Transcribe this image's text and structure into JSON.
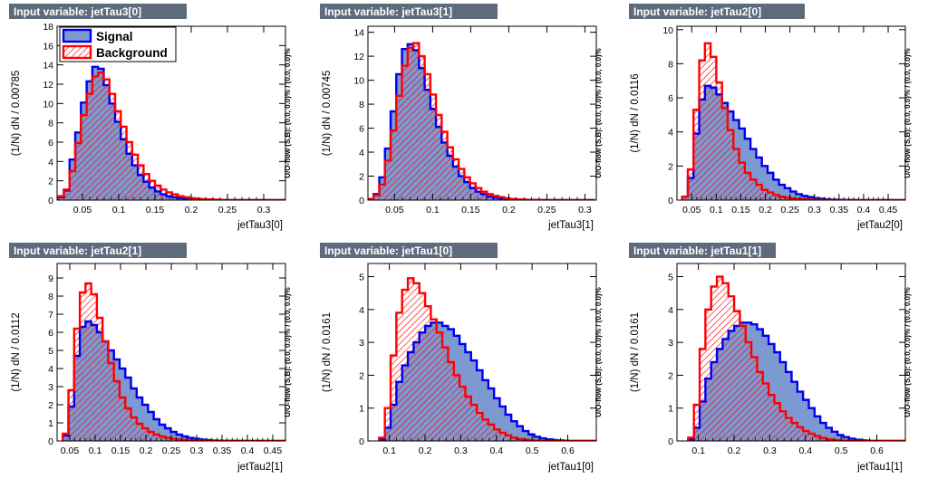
{
  "colors": {
    "signal_fill": "#7d99d1",
    "signal_line": "#0000ee",
    "background_fill": "#ff0000",
    "background_line": "#ff0000",
    "title_bg": "#5d6b7d"
  },
  "legend": {
    "signal": "Signal",
    "background": "Background"
  },
  "chart_data": [
    {
      "type": "histogram",
      "title": "Input variable: jetTau3[0]",
      "xlabel": "jetTau3[0]",
      "ylabel": "(1/N) dN / 0.00785",
      "overflow_label": "U/O-flow (S,B): (0.0, 0.0)% / (0.0, 0.0)%",
      "xlim": [
        0.015,
        0.33
      ],
      "ylim": [
        0,
        18
      ],
      "xticks": [
        0.05,
        0.1,
        0.15,
        0.2,
        0.25,
        0.3
      ],
      "xtick_labels": [
        "0.05",
        "0.1",
        "0.15",
        "0.2",
        "0.25",
        "0.3"
      ],
      "yticks": [
        0,
        2,
        4,
        6,
        8,
        10,
        12,
        14,
        16,
        18
      ],
      "ytick_labels": [
        "0",
        "2",
        "4",
        "6",
        "8",
        "10",
        "12",
        "14",
        "16",
        "18"
      ],
      "bin_start": 0.0165,
      "bin_width": 0.00785,
      "series": [
        {
          "name": "Signal",
          "values": [
            0.3,
            1.0,
            4.2,
            7.0,
            10.1,
            12.3,
            13.8,
            13.6,
            11.9,
            10.0,
            8.1,
            6.3,
            4.8,
            3.6,
            2.6,
            1.9,
            1.3,
            0.9,
            0.6,
            0.4,
            0.3,
            0.2,
            0.1,
            0.1,
            0.05,
            0.05,
            0.02,
            0.02,
            0.01,
            0.01,
            0.01,
            0.0,
            0.0,
            0.0,
            0.0,
            0.0,
            0.0,
            0.0,
            0.0,
            0.0
          ]
        },
        {
          "name": "Background",
          "values": [
            0.4,
            1.1,
            3.0,
            5.9,
            8.8,
            11.0,
            12.8,
            13.2,
            12.5,
            11.0,
            9.2,
            7.6,
            6.0,
            4.7,
            3.6,
            2.7,
            2.0,
            1.5,
            1.1,
            0.8,
            0.6,
            0.4,
            0.3,
            0.2,
            0.15,
            0.1,
            0.08,
            0.05,
            0.03,
            0.02,
            0.01,
            0.01,
            0.0,
            0.0,
            0.0,
            0.0,
            0.0,
            0.0,
            0.0,
            0.0
          ]
        }
      ],
      "legend_shown": true
    },
    {
      "type": "histogram",
      "title": "Input variable: jetTau3[1]",
      "xlabel": "jetTau3[1]",
      "ylabel": "(1/N) dN / 0.00745",
      "overflow_label": "U/O-flow (S,B): (0.0, 0.0)% / (0.0, 0.0)%",
      "xlim": [
        0.015,
        0.315
      ],
      "ylim": [
        0,
        14.5
      ],
      "xticks": [
        0.05,
        0.1,
        0.15,
        0.2,
        0.25,
        0.3
      ],
      "xtick_labels": [
        "0.05",
        "0.1",
        "0.15",
        "0.2",
        "0.25",
        "0.3"
      ],
      "yticks": [
        0,
        2,
        4,
        6,
        8,
        10,
        12,
        14
      ],
      "ytick_labels": [
        "0",
        "2",
        "4",
        "6",
        "8",
        "10",
        "12",
        "14"
      ],
      "bin_start": 0.015,
      "bin_width": 0.00745,
      "series": [
        {
          "name": "Signal",
          "values": [
            0.1,
            0.5,
            1.9,
            4.3,
            7.4,
            10.5,
            12.6,
            13.0,
            12.5,
            11.0,
            9.2,
            7.6,
            6.1,
            4.8,
            3.7,
            2.8,
            2.0,
            1.5,
            1.0,
            0.7,
            0.5,
            0.3,
            0.2,
            0.15,
            0.1,
            0.05,
            0.03,
            0.02,
            0.01,
            0.01,
            0.0,
            0.0,
            0.0,
            0.0,
            0.0,
            0.0,
            0.0,
            0.0,
            0.0,
            0.0
          ]
        },
        {
          "name": "Background",
          "values": [
            0.1,
            0.4,
            1.3,
            3.3,
            5.8,
            8.7,
            11.2,
            12.7,
            13.1,
            12.0,
            10.5,
            8.8,
            7.1,
            5.7,
            4.4,
            3.4,
            2.6,
            1.9,
            1.4,
            1.0,
            0.7,
            0.5,
            0.35,
            0.25,
            0.15,
            0.1,
            0.06,
            0.04,
            0.02,
            0.01,
            0.0,
            0.0,
            0.0,
            0.0,
            0.0,
            0.0,
            0.0,
            0.0,
            0.0,
            0.0
          ]
        }
      ],
      "legend_shown": false
    },
    {
      "type": "histogram",
      "title": "Input variable: jetTau2[0]",
      "xlabel": "jetTau2[0]",
      "ylabel": "(1/N) dN / 0.0116",
      "overflow_label": "U/O-flow (S,B): (0.0, 0.0)% / (0.0, 0.0)%",
      "xlim": [
        0.02,
        0.485
      ],
      "ylim": [
        0,
        10.2
      ],
      "xticks": [
        0.05,
        0.1,
        0.15,
        0.2,
        0.25,
        0.3,
        0.35,
        0.4,
        0.45
      ],
      "xtick_labels": [
        "0.05",
        "0.1",
        "0.15",
        "0.2",
        "0.25",
        "0.3",
        "0.35",
        "0.4",
        "0.45"
      ],
      "yticks": [
        0,
        2,
        4,
        6,
        8,
        10
      ],
      "ytick_labels": [
        "0",
        "2",
        "4",
        "6",
        "8",
        "10"
      ],
      "bin_start": 0.0305,
      "bin_width": 0.0116,
      "series": [
        {
          "name": "Signal",
          "values": [
            0.2,
            1.3,
            3.9,
            5.9,
            6.7,
            6.6,
            6.2,
            5.7,
            5.2,
            4.7,
            4.2,
            3.6,
            3.0,
            2.5,
            2.0,
            1.6,
            1.2,
            0.9,
            0.7,
            0.5,
            0.35,
            0.25,
            0.18,
            0.12,
            0.08,
            0.05,
            0.03,
            0.02,
            0.01,
            0.01,
            0.0,
            0.0,
            0.0,
            0.0,
            0.0,
            0.0,
            0.0,
            0.0,
            0.0,
            0.0
          ]
        },
        {
          "name": "Background",
          "values": [
            0.2,
            1.8,
            5.3,
            8.2,
            9.2,
            8.4,
            6.9,
            5.4,
            4.1,
            3.0,
            2.2,
            1.6,
            1.2,
            0.9,
            0.6,
            0.45,
            0.3,
            0.2,
            0.15,
            0.1,
            0.07,
            0.05,
            0.03,
            0.02,
            0.01,
            0.01,
            0.0,
            0.0,
            0.0,
            0.0,
            0.0,
            0.0,
            0.0,
            0.0,
            0.0,
            0.0,
            0.0,
            0.0,
            0.0,
            0.0
          ]
        }
      ],
      "legend_shown": false
    },
    {
      "type": "histogram",
      "title": "Input variable: jetTau2[1]",
      "xlabel": "jetTau2[1]",
      "ylabel": "(1/N) dN / 0.0112",
      "overflow_label": "U/O-flow (S,B): (0.0, 0.0)% / (0.0, 0.0)%",
      "xlim": [
        0.025,
        0.475
      ],
      "ylim": [
        0,
        9.8
      ],
      "xticks": [
        0.05,
        0.1,
        0.15,
        0.2,
        0.25,
        0.3,
        0.35,
        0.4,
        0.45
      ],
      "xtick_labels": [
        "0.05",
        "0.1",
        "0.15",
        "0.2",
        "0.25",
        "0.3",
        "0.35",
        "0.4",
        "0.45"
      ],
      "yticks": [
        0,
        1,
        2,
        3,
        4,
        5,
        6,
        7,
        8,
        9
      ],
      "ytick_labels": [
        "0",
        "1",
        "2",
        "3",
        "4",
        "5",
        "6",
        "7",
        "8",
        "9"
      ],
      "bin_start": 0.0362,
      "bin_width": 0.0112,
      "series": [
        {
          "name": "Signal",
          "values": [
            0.3,
            1.9,
            4.7,
            6.3,
            6.6,
            6.4,
            6.0,
            5.5,
            5.0,
            4.5,
            4.0,
            3.5,
            2.9,
            2.4,
            2.0,
            1.6,
            1.2,
            0.9,
            0.7,
            0.5,
            0.35,
            0.25,
            0.17,
            0.12,
            0.08,
            0.05,
            0.03,
            0.02,
            0.01,
            0.01,
            0.0,
            0.0,
            0.0,
            0.0,
            0.0,
            0.0,
            0.0,
            0.0,
            0.0,
            0.0
          ]
        },
        {
          "name": "Background",
          "values": [
            0.4,
            2.8,
            6.2,
            8.2,
            8.7,
            8.1,
            6.8,
            5.5,
            4.3,
            3.3,
            2.4,
            1.8,
            1.3,
            0.95,
            0.7,
            0.5,
            0.35,
            0.25,
            0.18,
            0.12,
            0.08,
            0.05,
            0.03,
            0.02,
            0.01,
            0.01,
            0.0,
            0.0,
            0.0,
            0.0,
            0.0,
            0.0,
            0.0,
            0.0,
            0.0,
            0.0,
            0.0,
            0.0,
            0.0,
            0.0
          ]
        }
      ],
      "legend_shown": false
    },
    {
      "type": "histogram",
      "title": "Input variable: jetTau1[0]",
      "xlabel": "jetTau1[0]",
      "ylabel": "(1/N) dN / 0.0161",
      "overflow_label": "U/O-flow (S,B): (0.0, 0.0)% / (0.0, 0.0)%",
      "xlim": [
        0.04,
        0.68
      ],
      "ylim": [
        0,
        5.4
      ],
      "xticks": [
        0.1,
        0.2,
        0.3,
        0.4,
        0.5,
        0.6
      ],
      "xtick_labels": [
        "0.1",
        "0.2",
        "0.3",
        "0.4",
        "0.5",
        "0.6"
      ],
      "yticks": [
        0,
        1,
        2,
        3,
        4,
        5
      ],
      "ytick_labels": [
        "0",
        "1",
        "2",
        "3",
        "4",
        "5"
      ],
      "bin_start": 0.0714,
      "bin_width": 0.0161,
      "series": [
        {
          "name": "Signal",
          "values": [
            0.05,
            0.4,
            1.1,
            1.8,
            2.3,
            2.7,
            3.0,
            3.3,
            3.5,
            3.6,
            3.6,
            3.5,
            3.4,
            3.2,
            2.95,
            2.7,
            2.45,
            2.15,
            1.85,
            1.6,
            1.3,
            1.05,
            0.8,
            0.6,
            0.45,
            0.3,
            0.2,
            0.13,
            0.08,
            0.05,
            0.03,
            0.02,
            0.01,
            0.0,
            0.0,
            0.0,
            0.0,
            0.0,
            0.0,
            0.0
          ]
        },
        {
          "name": "Background",
          "values": [
            0.1,
            1.0,
            2.6,
            3.9,
            4.6,
            4.95,
            4.8,
            4.5,
            4.1,
            3.7,
            3.3,
            2.85,
            2.4,
            2.0,
            1.65,
            1.35,
            1.1,
            0.85,
            0.65,
            0.5,
            0.35,
            0.25,
            0.17,
            0.1,
            0.06,
            0.04,
            0.02,
            0.01,
            0.0,
            0.0,
            0.0,
            0.0,
            0.0,
            0.0,
            0.0,
            0.0,
            0.0,
            0.0,
            0.0,
            0.0
          ]
        }
      ],
      "legend_shown": false
    },
    {
      "type": "histogram",
      "title": "Input variable: jetTau1[1]",
      "xlabel": "jetTau1[1]",
      "ylabel": "(1/N) dN / 0.0161",
      "overflow_label": "U/O-flow (S,B): (0.0, 0.0)% / (0.0, 0.0)%",
      "xlim": [
        0.04,
        0.68
      ],
      "ylim": [
        0,
        5.4
      ],
      "xticks": [
        0.1,
        0.2,
        0.3,
        0.4,
        0.5,
        0.6
      ],
      "xtick_labels": [
        "0.1",
        "0.2",
        "0.3",
        "0.4",
        "0.5",
        "0.6"
      ],
      "yticks": [
        0,
        1,
        2,
        3,
        4,
        5
      ],
      "ytick_labels": [
        "0",
        "1",
        "2",
        "3",
        "4",
        "5"
      ],
      "bin_start": 0.0714,
      "bin_width": 0.0161,
      "series": [
        {
          "name": "Signal",
          "values": [
            0.05,
            0.4,
            1.2,
            1.9,
            2.4,
            2.8,
            3.1,
            3.35,
            3.5,
            3.6,
            3.6,
            3.55,
            3.4,
            3.2,
            2.95,
            2.7,
            2.4,
            2.1,
            1.8,
            1.5,
            1.25,
            1.0,
            0.75,
            0.55,
            0.4,
            0.28,
            0.18,
            0.12,
            0.07,
            0.04,
            0.02,
            0.01,
            0.0,
            0.0,
            0.0,
            0.0,
            0.0,
            0.0,
            0.0,
            0.0
          ]
        },
        {
          "name": "Background",
          "values": [
            0.1,
            1.1,
            2.8,
            4.0,
            4.7,
            5.0,
            4.8,
            4.4,
            3.95,
            3.5,
            3.0,
            2.55,
            2.1,
            1.75,
            1.4,
            1.15,
            0.9,
            0.7,
            0.55,
            0.42,
            0.3,
            0.22,
            0.15,
            0.09,
            0.05,
            0.03,
            0.02,
            0.01,
            0.0,
            0.0,
            0.0,
            0.0,
            0.0,
            0.0,
            0.0,
            0.0,
            0.0,
            0.0,
            0.0,
            0.0
          ]
        }
      ],
      "legend_shown": false
    }
  ]
}
